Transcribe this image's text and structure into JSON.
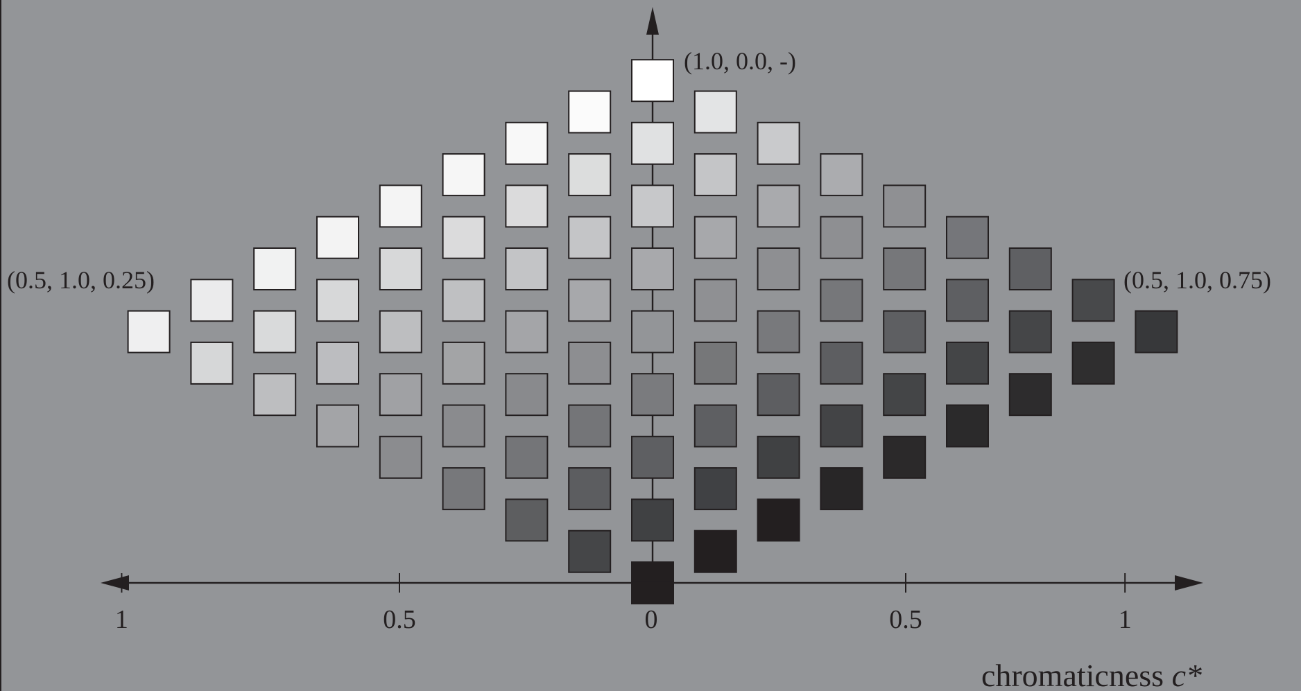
{
  "figure": {
    "background": "#939598",
    "stroke_color": "#231f20",
    "annotations": {
      "top": "(1.0, 0.0, -)",
      "left": "(0.5, 1.0, 0.25)",
      "right": "(0.5, 1.0, 0.75)"
    },
    "x_axis": {
      "label_prefix": "chromaticness ",
      "label_symbol": "c*",
      "ticks": [
        {
          "value": -1,
          "label": "1"
        },
        {
          "value": -0.5,
          "label": "0.5"
        },
        {
          "value": 0,
          "label": "0"
        },
        {
          "value": 0.5,
          "label": "0.5"
        },
        {
          "value": 1,
          "label": "1"
        }
      ]
    },
    "columns": [
      {
        "offset": -8,
        "grays": [
          "#efeff0"
        ]
      },
      {
        "offset": -7,
        "grays": [
          "#ebebec",
          "#d6d7d8"
        ]
      },
      {
        "offset": -6,
        "grays": [
          "#f1f2f2",
          "#d9dadb",
          "#bdbec0"
        ]
      },
      {
        "offset": -5,
        "grays": [
          "#f3f3f3",
          "#d7d8d9",
          "#bcbdc0",
          "#a3a4a7"
        ]
      },
      {
        "offset": -4,
        "grays": [
          "#f4f4f4",
          "#d7d8d9",
          "#bdbec0",
          "#a0a1a4",
          "#8b8c8f"
        ]
      },
      {
        "offset": -3,
        "grays": [
          "#f6f6f6",
          "#dbdbdc",
          "#bfc0c2",
          "#a3a4a6",
          "#8a8b8e",
          "#77787b"
        ]
      },
      {
        "offset": -2,
        "grays": [
          "#f8f8f8",
          "#dbdbdc",
          "#c3c4c6",
          "#a4a5a8",
          "#898a8d",
          "#747578",
          "#5d5e60"
        ]
      },
      {
        "offset": -1,
        "grays": [
          "#fbfbfb",
          "#dcdddd",
          "#c4c5c7",
          "#a7a8ab",
          "#8d8e91",
          "#747578",
          "#5c5d60",
          "#454648"
        ]
      },
      {
        "offset": 0,
        "grays": [
          "#ffffff",
          "#e0e1e2",
          "#c7c8ca",
          "#a8a9ac",
          "#939598",
          "#7a7b7e",
          "#5e5f62",
          "#404143",
          "#231f20"
        ]
      },
      {
        "offset": 1,
        "grays": [
          "#e3e4e5",
          "#c4c5c7",
          "#a7a8ab",
          "#8f9093",
          "#767779",
          "#5e5f62",
          "#404144",
          "#231f20"
        ]
      },
      {
        "offset": 2,
        "grays": [
          "#c9cacc",
          "#a9aaad",
          "#8e8f92",
          "#78797c",
          "#5d5e61",
          "#404143",
          "#231f20"
        ]
      },
      {
        "offset": 3,
        "grays": [
          "#abacaf",
          "#8e8f92",
          "#76777a",
          "#5d5e61",
          "#434446",
          "#282627"
        ]
      },
      {
        "offset": 4,
        "grays": [
          "#8f9093",
          "#76777a",
          "#5e5f62",
          "#444547",
          "#2b292a"
        ]
      },
      {
        "offset": 5,
        "grays": [
          "#75767a",
          "#5e5f62",
          "#444547",
          "#2b2a2b"
        ]
      },
      {
        "offset": 6,
        "grays": [
          "#5f6063",
          "#454648",
          "#2d2c2d"
        ]
      },
      {
        "offset": 7,
        "grays": [
          "#48494b",
          "#2f2e2f"
        ]
      },
      {
        "offset": 8,
        "grays": [
          "#37383a"
        ]
      }
    ]
  }
}
